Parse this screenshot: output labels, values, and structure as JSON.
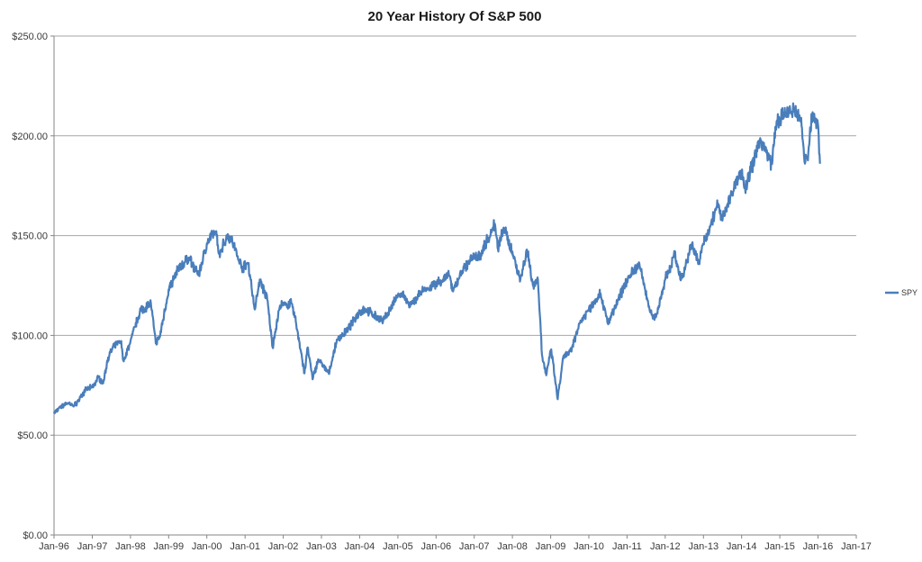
{
  "chart_data": {
    "type": "line",
    "title": "20 Year History Of S&P 500",
    "xlabel": "",
    "ylabel": "",
    "x_range": [
      "1996-01-01",
      "2017-01-01"
    ],
    "ylim": [
      0,
      250
    ],
    "y_ticks": [
      0,
      50,
      100,
      150,
      200,
      250
    ],
    "y_tick_labels": [
      "$0.00",
      "$50.00",
      "$100.00",
      "$150.00",
      "$200.00",
      "$250.00"
    ],
    "x_ticks": [
      "1996-01-01",
      "1997-01-01",
      "1998-01-01",
      "1999-01-01",
      "2000-01-01",
      "2001-01-01",
      "2002-01-01",
      "2003-01-01",
      "2004-01-01",
      "2005-01-01",
      "2006-01-01",
      "2007-01-01",
      "2008-01-01",
      "2009-01-01",
      "2010-01-01",
      "2011-01-01",
      "2012-01-01",
      "2013-01-01",
      "2014-01-01",
      "2015-01-01",
      "2016-01-01",
      "2017-01-01"
    ],
    "x_tick_labels": [
      "Jan-96",
      "Jan-97",
      "Jan-98",
      "Jan-99",
      "Jan-00",
      "Jan-01",
      "Jan-02",
      "Jan-03",
      "Jan-04",
      "Jan-05",
      "Jan-06",
      "Jan-07",
      "Jan-08",
      "Jan-09",
      "Jan-10",
      "Jan-11",
      "Jan-12",
      "Jan-13",
      "Jan-14",
      "Jan-15",
      "Jan-16",
      "Jan-17"
    ],
    "grid": "horizontal",
    "legend_position": "right",
    "series": [
      {
        "name": "SPY",
        "color": "#4a7ebb",
        "x": [
          "1996-01-01",
          "1996-03-01",
          "1996-05-01",
          "1996-07-15",
          "1996-09-01",
          "1996-11-01",
          "1997-01-01",
          "1997-03-01",
          "1997-04-15",
          "1997-06-01",
          "1997-08-01",
          "1997-10-01",
          "1997-10-28",
          "1998-01-01",
          "1998-04-01",
          "1998-07-15",
          "1998-08-31",
          "1998-10-08",
          "1999-01-01",
          "1999-04-01",
          "1999-07-15",
          "1999-10-15",
          "2000-01-01",
          "2000-03-24",
          "2000-05-01",
          "2000-07-15",
          "2000-09-01",
          "2000-12-01",
          "2001-01-31",
          "2001-04-04",
          "2001-05-21",
          "2001-08-01",
          "2001-09-21",
          "2001-12-01",
          "2002-01-01",
          "2002-03-19",
          "2002-05-01",
          "2002-07-23",
          "2002-08-22",
          "2002-10-09",
          "2002-12-01",
          "2003-03-11",
          "2003-06-01",
          "2003-09-01",
          "2004-01-01",
          "2004-03-01",
          "2004-08-12",
          "2005-01-01",
          "2005-03-01",
          "2005-04-20",
          "2005-08-01",
          "2006-01-01",
          "2006-05-08",
          "2006-06-13",
          "2006-09-01",
          "2007-01-01",
          "2007-02-27",
          "2007-07-16",
          "2007-08-16",
          "2007-10-09",
          "2008-01-01",
          "2008-03-17",
          "2008-05-19",
          "2008-07-15",
          "2008-09-01",
          "2008-10-10",
          "2008-11-20",
          "2009-01-06",
          "2009-03-09",
          "2009-05-01",
          "2009-07-15",
          "2009-10-01",
          "2010-01-01",
          "2010-04-23",
          "2010-07-01",
          "2010-09-01",
          "2011-01-01",
          "2011-04-29",
          "2011-08-08",
          "2011-10-03",
          "2012-01-01",
          "2012-04-01",
          "2012-06-01",
          "2012-09-14",
          "2012-11-15",
          "2013-01-01",
          "2013-05-21",
          "2013-06-24",
          "2013-09-18",
          "2014-01-01",
          "2014-02-03",
          "2014-07-01",
          "2014-10-15",
          "2014-12-01",
          "2015-03-01",
          "2015-05-21",
          "2015-07-20",
          "2015-08-25",
          "2015-10-01",
          "2015-11-03",
          "2015-12-31",
          "2016-01-20"
        ],
        "values": [
          61,
          64,
          66,
          65,
          68,
          73,
          74,
          79,
          76,
          89,
          95,
          97,
          87,
          97,
          112,
          116,
          96,
          99,
          123,
          133,
          139,
          130,
          146,
          152,
          141,
          150,
          147,
          134,
          136,
          113,
          128,
          118,
          94,
          115,
          115,
          116,
          107,
          81,
          94,
          78,
          88,
          81,
          98,
          102,
          112,
          113,
          107,
          120,
          120,
          114,
          121,
          126,
          130,
          122,
          132,
          140,
          140,
          156,
          143,
          154,
          142,
          128,
          143,
          125,
          128,
          90,
          80,
          93,
          68,
          89,
          92,
          106,
          113,
          121,
          106,
          113,
          128,
          136,
          112,
          109,
          128,
          140,
          128,
          146,
          136,
          146,
          166,
          158,
          170,
          183,
          174,
          198,
          186,
          207,
          211,
          212,
          209,
          187,
          192,
          210,
          206,
          186
        ]
      }
    ]
  }
}
